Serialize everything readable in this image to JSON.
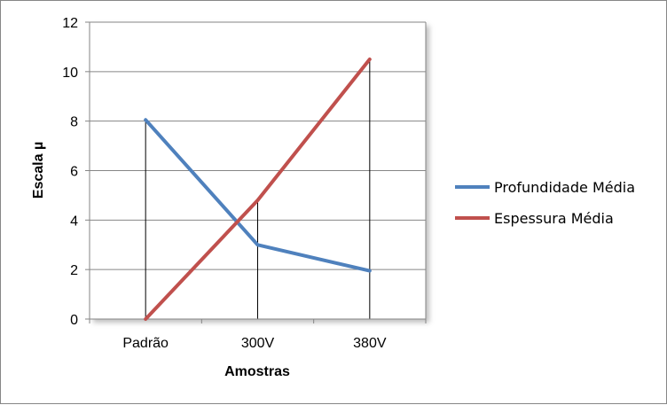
{
  "chart_data": {
    "type": "line",
    "categories": [
      "Padrão",
      "300V",
      "380V"
    ],
    "series": [
      {
        "name": "Profundidade Média",
        "values": [
          8.05,
          3.0,
          1.95
        ],
        "color": "#4F81BD"
      },
      {
        "name": "Espessura Média",
        "values": [
          0.0,
          4.8,
          10.5
        ],
        "color": "#C0504D"
      }
    ],
    "xlabel": "Amostras",
    "ylabel": "Escala µ",
    "ylim": [
      0,
      12
    ],
    "yticks": [
      0,
      2,
      4,
      6,
      8,
      10,
      12
    ],
    "grid": true,
    "drop_lines": true,
    "legend_position": "right",
    "colors": {
      "gridline": "#868686",
      "drop_line": "#000000",
      "frame": "#868686"
    }
  }
}
